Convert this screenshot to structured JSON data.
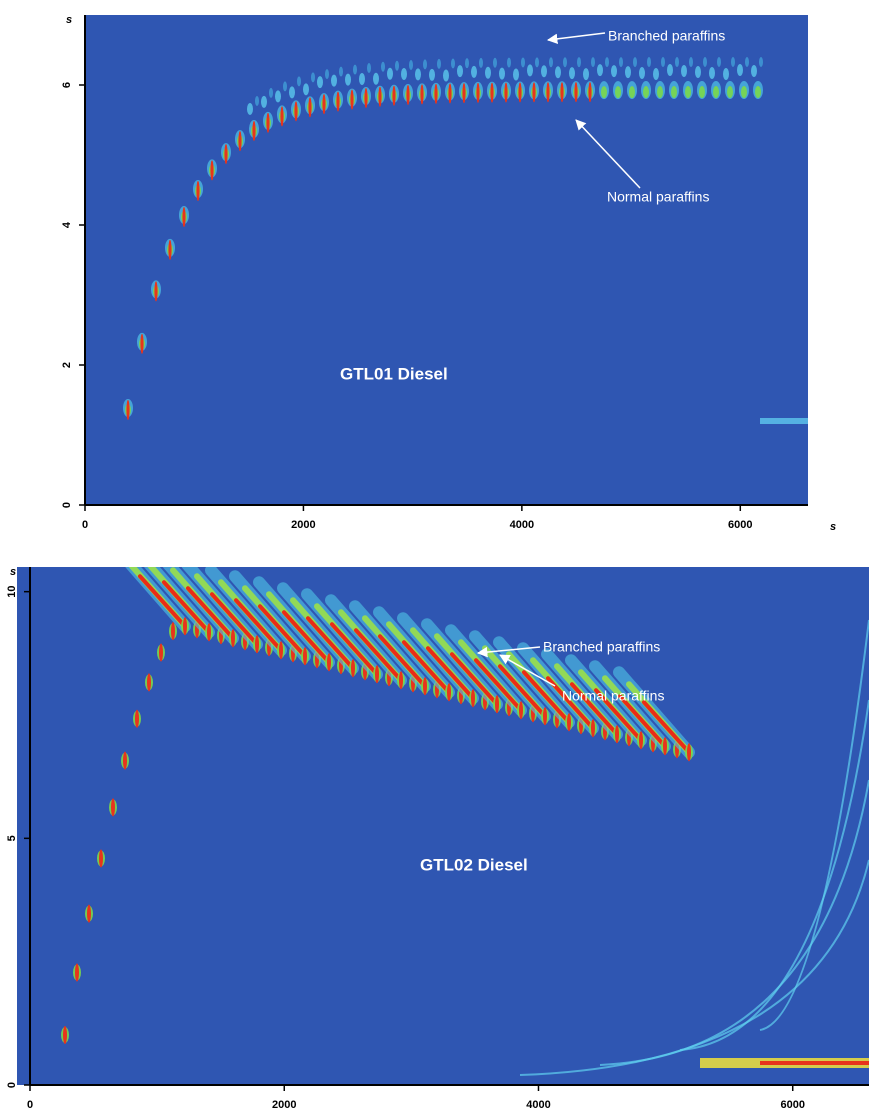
{
  "chart_data": [
    {
      "type": "heatmap",
      "title": "GTL01 Diesel",
      "annotations": [
        "Branched paraffins",
        "Normal paraffins"
      ],
      "x_label": "s",
      "y_label": "s",
      "background": "#2f56b2",
      "xlim": [
        0,
        6620
      ],
      "xticks": [
        0,
        2000,
        4000,
        6000
      ],
      "ylim": [
        0,
        7
      ],
      "yticks": [
        0,
        2,
        4,
        6
      ]
    },
    {
      "type": "heatmap",
      "title": "GTL02 Diesel",
      "annotations": [
        "Branched paraffins",
        "Normal paraffins"
      ],
      "y_label": "s",
      "background": "#2f56b2",
      "xlim": [
        0,
        6600
      ],
      "xticks": [
        0,
        2000,
        4000,
        6000
      ],
      "ylim": [
        0,
        10.5
      ],
      "yticks": [
        0,
        5,
        10
      ]
    }
  ]
}
